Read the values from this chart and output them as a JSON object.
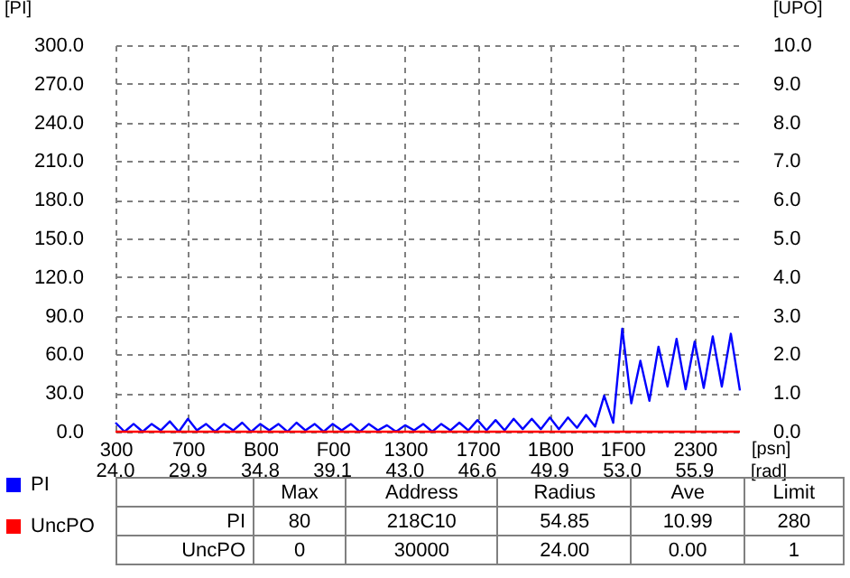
{
  "chart_data": {
    "type": "line",
    "xlabel": "[psn]",
    "ylabel": "[PI]",
    "y2label": "[UPO]",
    "categories": [
      "300",
      null,
      null,
      null,
      null,
      null,
      null,
      null,
      "700",
      null,
      null,
      null,
      null,
      null,
      null,
      null,
      "B00",
      null,
      null,
      null,
      null,
      null,
      null,
      null,
      "F00",
      null,
      null,
      null,
      null,
      null,
      null,
      null,
      "1300",
      null,
      null,
      null,
      null,
      null,
      null,
      null,
      "1700",
      null,
      null,
      null,
      null,
      null,
      null,
      null,
      "1B00",
      null,
      null,
      null,
      null,
      null,
      null,
      null,
      "1F00",
      null,
      null,
      null,
      null,
      null,
      null,
      null,
      "2300",
      null,
      null,
      null,
      null,
      null
    ],
    "ylim": [
      0,
      300
    ],
    "yticks": [
      {
        "value": 0,
        "label": "0.0"
      },
      {
        "value": 30,
        "label": "30.0"
      },
      {
        "value": 60,
        "label": "60.0"
      },
      {
        "value": 90,
        "label": "90.0"
      },
      {
        "value": 120,
        "label": "120.0"
      },
      {
        "value": 150,
        "label": "150.0"
      },
      {
        "value": 180,
        "label": "180.0"
      },
      {
        "value": 210,
        "label": "210.0"
      },
      {
        "value": 240,
        "label": "240.0"
      },
      {
        "value": 270,
        "label": "270.0"
      },
      {
        "value": 300,
        "label": "300.0"
      }
    ],
    "y2lim": [
      0,
      10
    ],
    "y2ticks": [
      {
        "value": 0,
        "label": "0.0"
      },
      {
        "value": 1,
        "label": "1.0"
      },
      {
        "value": 2,
        "label": "2.0"
      },
      {
        "value": 3,
        "label": "3.0"
      },
      {
        "value": 4,
        "label": "4.0"
      },
      {
        "value": 5,
        "label": "5.0"
      },
      {
        "value": 6,
        "label": "6.0"
      },
      {
        "value": 7,
        "label": "7.0"
      },
      {
        "value": 8,
        "label": "8.0"
      },
      {
        "value": 9,
        "label": "9.0"
      },
      {
        "value": 10,
        "label": "10.0"
      }
    ],
    "grid": true,
    "legend": "bottom left",
    "series": [
      {
        "name": "PI",
        "color": "#0000ff",
        "values": [
          7,
          0,
          6,
          0,
          6,
          1,
          8,
          0,
          10,
          1,
          6,
          0,
          6,
          1,
          7,
          0,
          6,
          1,
          6,
          0,
          7,
          1,
          6,
          0,
          6,
          1,
          6,
          0,
          6,
          1,
          5,
          0,
          5,
          1,
          6,
          0,
          6,
          1,
          7,
          1,
          9,
          1,
          9,
          1,
          10,
          2,
          10,
          2,
          11,
          2,
          11,
          3,
          13,
          4,
          28,
          7,
          80,
          22,
          55,
          24,
          66,
          35,
          72,
          33,
          70,
          34,
          74,
          35,
          76,
          32
        ]
      },
      {
        "name": "UncPO",
        "color": "#ff0000",
        "axis": "y2",
        "values": [
          0,
          0,
          0,
          0,
          0,
          0,
          0,
          0,
          0,
          0,
          0,
          0,
          0,
          0,
          0,
          0,
          0,
          0,
          0,
          0,
          0,
          0,
          0,
          0,
          0,
          0,
          0,
          0,
          0,
          0,
          0,
          0,
          0,
          0,
          0,
          0,
          0,
          0,
          0,
          0,
          0,
          0,
          0,
          0,
          0,
          0,
          0,
          0,
          0,
          0,
          0,
          0,
          0,
          0,
          0,
          0,
          0,
          0,
          0,
          0,
          0,
          0,
          0,
          0,
          0,
          0,
          0,
          0,
          0,
          0
        ]
      }
    ],
    "annotations": [
      "24.0",
      "29.9",
      "34.8",
      "39.1",
      "43.0",
      "46.6",
      "49.9",
      "53.0",
      "55.9",
      "[rad]",
      "Max",
      "Address",
      "Radius",
      "Ave",
      "Limit",
      "PI",
      "80",
      "218C10",
      "54.85",
      "10.99",
      "280",
      "UncPO",
      "0",
      "30000",
      "24.00",
      "0.00",
      "1"
    ]
  }
}
